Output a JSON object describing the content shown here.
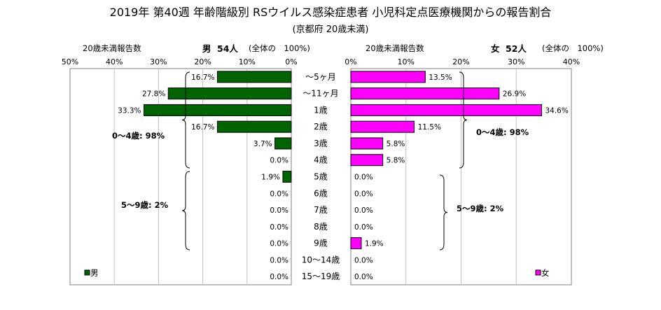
{
  "title": "2019年 第40週 年齢階級別 RSウイルス感染症患者 小児科定点医療機関からの報告割合",
  "subtitle": "(京都府 20歳未満)",
  "male": {
    "header_left": "20歳未満報告数",
    "header_sex": "男",
    "header_count": "54人",
    "header_total": "(全体の　100%)",
    "legend": "男",
    "group_labels": [
      "0～4歳: 98%",
      "5～9歳: 2%"
    ],
    "color": "#006400"
  },
  "female": {
    "header_left": "20歳未満報告数",
    "header_sex": "女",
    "header_count": "52人",
    "header_total": "(全体の　100%)",
    "legend": "女",
    "group_labels": [
      "0～4歳: 98%",
      "5～9歳: 2%"
    ],
    "color": "#FF00FF"
  },
  "chart_data": {
    "type": "bar",
    "orientation": "horizontal",
    "layout": "population-pyramid",
    "categories": [
      "～5ヶ月",
      "～11ヶ月",
      "1歳",
      "2歳",
      "3歳",
      "4歳",
      "5歳",
      "6歳",
      "7歳",
      "8歳",
      "9歳",
      "10～14歳",
      "15～19歳"
    ],
    "series": [
      {
        "name": "男",
        "values": [
          16.7,
          27.8,
          33.3,
          16.7,
          3.7,
          0.0,
          1.9,
          0.0,
          0.0,
          0.0,
          0.0,
          0.0,
          0.0
        ],
        "data_labels": [
          "16.7%",
          "27.8%",
          "33.3%",
          "16.7%",
          "3.7%",
          "0.0%",
          "1.9%",
          "0.0%",
          "0.0%",
          "0.0%",
          "0.0%",
          "0.0%",
          "0.0%"
        ]
      },
      {
        "name": "女",
        "values": [
          13.5,
          26.9,
          34.6,
          11.5,
          5.8,
          5.8,
          0.0,
          0.0,
          0.0,
          0.0,
          1.9,
          0.0,
          0.0
        ],
        "data_labels": [
          "13.5%",
          "26.9%",
          "34.6%",
          "11.5%",
          "5.8%",
          "5.8%",
          "0.0%",
          "0.0%",
          "0.0%",
          "0.0%",
          "1.9%",
          "0.0%",
          "0.0%"
        ]
      }
    ],
    "left_axis": {
      "ticks": [
        "50%",
        "40%",
        "30%",
        "20%",
        "10%",
        "0%"
      ],
      "range": [
        50,
        0
      ]
    },
    "right_axis": {
      "ticks": [
        "0%",
        "10%",
        "20%",
        "30%",
        "40%"
      ],
      "range": [
        0,
        40
      ]
    },
    "grid": "vertical",
    "legend_placement": "bottom-left / bottom-right"
  }
}
